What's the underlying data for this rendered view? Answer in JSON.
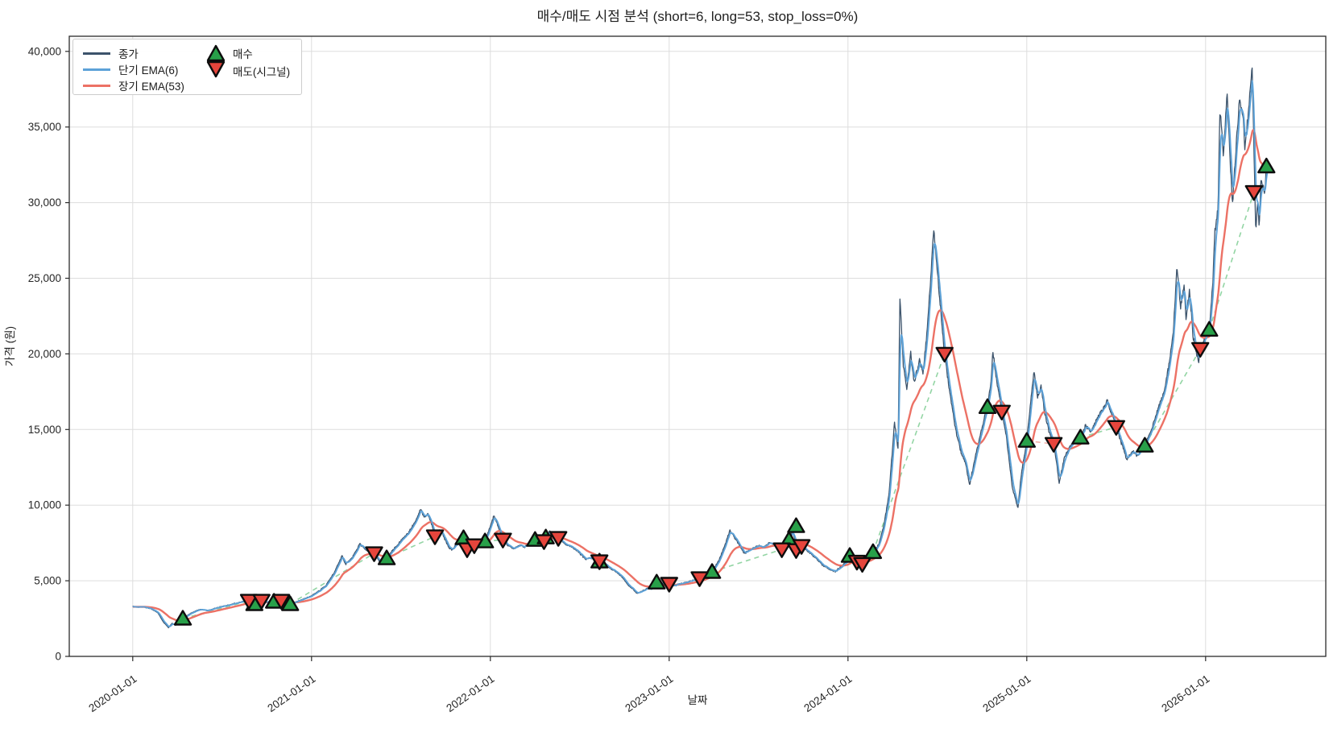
{
  "chart_data": {
    "type": "line",
    "title": "매수/매도 시점 분석 (short=6, long=53, stop_loss=0%)",
    "xlabel": "날짜",
    "ylabel": "가격 (원)",
    "params": {
      "short": 6,
      "long": 53,
      "stop_loss": "0%"
    },
    "xlim": [
      2019.645,
      2026.672
    ],
    "ylim": [
      0,
      41000
    ],
    "grid": true,
    "legend_position": "upper-left",
    "x_ticks": [
      {
        "t": 2020,
        "label": "2020-01-01"
      },
      {
        "t": 2021,
        "label": "2021-01-01"
      },
      {
        "t": 2022,
        "label": "2022-01-01"
      },
      {
        "t": 2023,
        "label": "2023-01-01"
      },
      {
        "t": 2024,
        "label": "2024-01-01"
      },
      {
        "t": 2025,
        "label": "2025-01-01"
      },
      {
        "t": 2026,
        "label": "2026-01-01"
      }
    ],
    "y_ticks": [
      {
        "v": 0,
        "label": "0"
      },
      {
        "v": 5000,
        "label": "5,000"
      },
      {
        "v": 10000,
        "label": "10,000"
      },
      {
        "v": 15000,
        "label": "15,000"
      },
      {
        "v": 20000,
        "label": "20,000"
      },
      {
        "v": 25000,
        "label": "25,000"
      },
      {
        "v": 30000,
        "label": "30,000"
      },
      {
        "v": 35000,
        "label": "35,000"
      },
      {
        "v": 40000,
        "label": "40,000"
      }
    ],
    "legend": {
      "close": "종가",
      "ema_short": "단기 EMA(6)",
      "ema_long": "장기 EMA(53)",
      "buy": "매수",
      "sell": "매도(시그널)"
    },
    "colors": {
      "close": "#3c536b",
      "ema_short": "#5da2d8",
      "ema_long": "#ec7165",
      "buy": "#28a049",
      "sell": "#e6453c",
      "trade_profit": "#93d5a4",
      "trade_loss": "#f3b0a8",
      "grid": "#dddddd",
      "spine": "#2b2b2b",
      "text": "#1f1f1f"
    },
    "series_close": {
      "name": "종가",
      "points": [
        [
          2020.0,
          3300
        ],
        [
          2020.03,
          3250
        ],
        [
          2020.06,
          3280
        ],
        [
          2020.1,
          3150
        ],
        [
          2020.14,
          2900
        ],
        [
          2020.17,
          2300
        ],
        [
          2020.2,
          1900
        ],
        [
          2020.22,
          2200
        ],
        [
          2020.24,
          2050
        ],
        [
          2020.26,
          2350
        ],
        [
          2020.28,
          2500
        ],
        [
          2020.31,
          2750
        ],
        [
          2020.35,
          3000
        ],
        [
          2020.38,
          3100
        ],
        [
          2020.42,
          3020
        ],
        [
          2020.46,
          3180
        ],
        [
          2020.5,
          3300
        ],
        [
          2020.55,
          3430
        ],
        [
          2020.6,
          3580
        ],
        [
          2020.63,
          3700
        ],
        [
          2020.65,
          3640
        ],
        [
          2020.68,
          3480
        ],
        [
          2020.7,
          3560
        ],
        [
          2020.72,
          3660
        ],
        [
          2020.75,
          3590
        ],
        [
          2020.79,
          3640
        ],
        [
          2020.81,
          3710
        ],
        [
          2020.83,
          3650
        ],
        [
          2020.86,
          3530
        ],
        [
          2020.88,
          3470
        ],
        [
          2020.92,
          3620
        ],
        [
          2020.96,
          3820
        ],
        [
          2021.0,
          4000
        ],
        [
          2021.04,
          4320
        ],
        [
          2021.08,
          4680
        ],
        [
          2021.13,
          5600
        ],
        [
          2021.17,
          6650
        ],
        [
          2021.19,
          6100
        ],
        [
          2021.22,
          6400
        ],
        [
          2021.25,
          7000
        ],
        [
          2021.27,
          7450
        ],
        [
          2021.3,
          7050
        ],
        [
          2021.33,
          6900
        ],
        [
          2021.35,
          6800
        ],
        [
          2021.38,
          6300
        ],
        [
          2021.4,
          6420
        ],
        [
          2021.42,
          6500
        ],
        [
          2021.46,
          7100
        ],
        [
          2021.5,
          7650
        ],
        [
          2021.54,
          8150
        ],
        [
          2021.58,
          8900
        ],
        [
          2021.61,
          9740
        ],
        [
          2021.63,
          9150
        ],
        [
          2021.65,
          9450
        ],
        [
          2021.67,
          8800
        ],
        [
          2021.69,
          7950
        ],
        [
          2021.71,
          8350
        ],
        [
          2021.73,
          8150
        ],
        [
          2021.75,
          7650
        ],
        [
          2021.77,
          7150
        ],
        [
          2021.79,
          7050
        ],
        [
          2021.81,
          7420
        ],
        [
          2021.83,
          7620
        ],
        [
          2021.85,
          7820
        ],
        [
          2021.87,
          7150
        ],
        [
          2021.89,
          7000
        ],
        [
          2021.91,
          7320
        ],
        [
          2021.94,
          7520
        ],
        [
          2021.97,
          7640
        ],
        [
          2022.0,
          8600
        ],
        [
          2022.02,
          9310
        ],
        [
          2022.04,
          8700
        ],
        [
          2022.07,
          7710
        ],
        [
          2022.1,
          7320
        ],
        [
          2022.13,
          7120
        ],
        [
          2022.16,
          7360
        ],
        [
          2022.19,
          7220
        ],
        [
          2022.22,
          7520
        ],
        [
          2022.25,
          7710
        ],
        [
          2022.28,
          7640
        ],
        [
          2022.3,
          7610
        ],
        [
          2022.31,
          7870
        ],
        [
          2022.33,
          8300
        ],
        [
          2022.36,
          8020
        ],
        [
          2022.38,
          7820
        ],
        [
          2022.42,
          7420
        ],
        [
          2022.46,
          7220
        ],
        [
          2022.5,
          6820
        ],
        [
          2022.53,
          6420
        ],
        [
          2022.56,
          6520
        ],
        [
          2022.59,
          6330
        ],
        [
          2022.61,
          6280
        ],
        [
          2022.64,
          6120
        ],
        [
          2022.67,
          5830
        ],
        [
          2022.7,
          5620
        ],
        [
          2022.74,
          5220
        ],
        [
          2022.77,
          4720
        ],
        [
          2022.8,
          4420
        ],
        [
          2022.82,
          4150
        ],
        [
          2022.85,
          4320
        ],
        [
          2022.88,
          4520
        ],
        [
          2022.9,
          4420
        ],
        [
          2022.93,
          4890
        ],
        [
          2022.96,
          4810
        ],
        [
          2023.0,
          4790
        ],
        [
          2023.03,
          4660
        ],
        [
          2023.06,
          4800
        ],
        [
          2023.1,
          4910
        ],
        [
          2023.13,
          5010
        ],
        [
          2023.17,
          5160
        ],
        [
          2023.2,
          5400
        ],
        [
          2023.24,
          5590
        ],
        [
          2023.28,
          6400
        ],
        [
          2023.31,
          7300
        ],
        [
          2023.34,
          8350
        ],
        [
          2023.38,
          7600
        ],
        [
          2023.42,
          6810
        ],
        [
          2023.46,
          7120
        ],
        [
          2023.5,
          7320
        ],
        [
          2023.53,
          7210
        ],
        [
          2023.56,
          7520
        ],
        [
          2023.59,
          7410
        ],
        [
          2023.61,
          7210
        ],
        [
          2023.63,
          7100
        ],
        [
          2023.65,
          7420
        ],
        [
          2023.67,
          7700
        ],
        [
          2023.69,
          8300
        ],
        [
          2023.71,
          7400
        ],
        [
          2023.74,
          7290
        ],
        [
          2023.78,
          6900
        ],
        [
          2023.82,
          6490
        ],
        [
          2023.86,
          6010
        ],
        [
          2023.9,
          5740
        ],
        [
          2023.93,
          5620
        ],
        [
          2023.96,
          5910
        ],
        [
          2024.0,
          6350
        ],
        [
          2024.01,
          6650
        ],
        [
          2024.03,
          6420
        ],
        [
          2024.05,
          6250
        ],
        [
          2024.08,
          6100
        ],
        [
          2024.11,
          6520
        ],
        [
          2024.14,
          6900
        ],
        [
          2024.17,
          7350
        ],
        [
          2024.2,
          8600
        ],
        [
          2024.23,
          10800
        ],
        [
          2024.26,
          15500
        ],
        [
          2024.28,
          13700
        ],
        [
          2024.29,
          23800
        ],
        [
          2024.31,
          19200
        ],
        [
          2024.33,
          17600
        ],
        [
          2024.35,
          20100
        ],
        [
          2024.37,
          18100
        ],
        [
          2024.4,
          19600
        ],
        [
          2024.42,
          18700
        ],
        [
          2024.44,
          21200
        ],
        [
          2024.46,
          24600
        ],
        [
          2024.48,
          28300
        ],
        [
          2024.5,
          25400
        ],
        [
          2024.52,
          22800
        ],
        [
          2024.54,
          20000
        ],
        [
          2024.57,
          17400
        ],
        [
          2024.6,
          15100
        ],
        [
          2024.63,
          13600
        ],
        [
          2024.66,
          12600
        ],
        [
          2024.68,
          11300
        ],
        [
          2024.71,
          13100
        ],
        [
          2024.74,
          14600
        ],
        [
          2024.76,
          15600
        ],
        [
          2024.78,
          16490
        ],
        [
          2024.8,
          18200
        ],
        [
          2024.81,
          20200
        ],
        [
          2024.83,
          18400
        ],
        [
          2024.86,
          16170
        ],
        [
          2024.88,
          15000
        ],
        [
          2024.9,
          13100
        ],
        [
          2024.92,
          11100
        ],
        [
          2024.95,
          9840
        ],
        [
          2024.97,
          12100
        ],
        [
          2025.0,
          14260
        ],
        [
          2025.02,
          16600
        ],
        [
          2025.04,
          18880
        ],
        [
          2025.06,
          17100
        ],
        [
          2025.08,
          17900
        ],
        [
          2025.1,
          16100
        ],
        [
          2025.13,
          14600
        ],
        [
          2025.15,
          14040
        ],
        [
          2025.17,
          12600
        ],
        [
          2025.18,
          11440
        ],
        [
          2025.21,
          13100
        ],
        [
          2025.24,
          13900
        ],
        [
          2025.27,
          14250
        ],
        [
          2025.3,
          14470
        ],
        [
          2025.33,
          15250
        ],
        [
          2025.36,
          14850
        ],
        [
          2025.39,
          15650
        ],
        [
          2025.42,
          16250
        ],
        [
          2025.45,
          16900
        ],
        [
          2025.48,
          15850
        ],
        [
          2025.5,
          15160
        ],
        [
          2025.53,
          14050
        ],
        [
          2025.56,
          13030
        ],
        [
          2025.59,
          13550
        ],
        [
          2025.62,
          13250
        ],
        [
          2025.64,
          13650
        ],
        [
          2025.66,
          13940
        ],
        [
          2025.7,
          15100
        ],
        [
          2025.74,
          16600
        ],
        [
          2025.77,
          17600
        ],
        [
          2025.8,
          19600
        ],
        [
          2025.82,
          21600
        ],
        [
          2025.84,
          25800
        ],
        [
          2025.86,
          23100
        ],
        [
          2025.88,
          24600
        ],
        [
          2025.89,
          22300
        ],
        [
          2025.91,
          24200
        ],
        [
          2025.93,
          21100
        ],
        [
          2025.96,
          19400
        ],
        [
          2025.98,
          20600
        ],
        [
          2026.02,
          21600
        ],
        [
          2026.04,
          24600
        ],
        [
          2026.05,
          27900
        ],
        [
          2026.07,
          29600
        ],
        [
          2026.08,
          36400
        ],
        [
          2026.1,
          33100
        ],
        [
          2026.12,
          37200
        ],
        [
          2026.13,
          34600
        ],
        [
          2026.15,
          29800
        ],
        [
          2026.17,
          33600
        ],
        [
          2026.19,
          36900
        ],
        [
          2026.21,
          35600
        ],
        [
          2026.22,
          33600
        ],
        [
          2026.24,
          36100
        ],
        [
          2026.26,
          39000
        ],
        [
          2026.27,
          34100
        ],
        [
          2026.28,
          28100
        ],
        [
          2026.29,
          30100
        ],
        [
          2026.3,
          28300
        ],
        [
          2026.31,
          31600
        ],
        [
          2026.33,
          30600
        ],
        [
          2026.34,
          32400
        ],
        [
          2026.35,
          32600
        ]
      ]
    },
    "series_ema_short": {
      "name": "단기 EMA(6)",
      "derived": "ema",
      "span": 6
    },
    "series_ema_long": {
      "name": "장기 EMA(53)",
      "derived": "ema",
      "span": 53
    },
    "markers": {
      "buy": {
        "label": "매수",
        "points": [
          [
            2020.28,
            2500
          ],
          [
            2020.68,
            3460
          ],
          [
            2020.79,
            3620
          ],
          [
            2020.88,
            3460
          ],
          [
            2021.42,
            6490
          ],
          [
            2021.85,
            7820
          ],
          [
            2021.97,
            7610
          ],
          [
            2022.25,
            7710
          ],
          [
            2022.31,
            7870
          ],
          [
            2022.61,
            6280
          ],
          [
            2022.93,
            4890
          ],
          [
            2023.24,
            5590
          ],
          [
            2023.67,
            7710
          ],
          [
            2023.71,
            8620
          ],
          [
            2024.01,
            6650
          ],
          [
            2024.14,
            6900
          ],
          [
            2024.78,
            16490
          ],
          [
            2025.0,
            14260
          ],
          [
            2025.3,
            14470
          ],
          [
            2025.66,
            13940
          ],
          [
            2026.02,
            21600
          ],
          [
            2026.34,
            32400
          ]
        ]
      },
      "sell": {
        "label": "매도(시그널)",
        "points": [
          [
            2020.65,
            3670
          ],
          [
            2020.72,
            3670
          ],
          [
            2020.83,
            3670
          ],
          [
            2021.35,
            6810
          ],
          [
            2021.69,
            7930
          ],
          [
            2021.87,
            7070
          ],
          [
            2021.91,
            7340
          ],
          [
            2022.07,
            7710
          ],
          [
            2022.3,
            7610
          ],
          [
            2022.38,
            7820
          ],
          [
            2022.61,
            6280
          ],
          [
            2023.0,
            4790
          ],
          [
            2023.17,
            5160
          ],
          [
            2023.63,
            7070
          ],
          [
            2023.71,
            7020
          ],
          [
            2023.74,
            7290
          ],
          [
            2024.05,
            6250
          ],
          [
            2024.08,
            6100
          ],
          [
            2024.54,
            20000
          ],
          [
            2024.86,
            16170
          ],
          [
            2025.15,
            14040
          ],
          [
            2025.5,
            15160
          ],
          [
            2025.97,
            20320
          ],
          [
            2026.27,
            30690
          ]
        ]
      }
    }
  }
}
